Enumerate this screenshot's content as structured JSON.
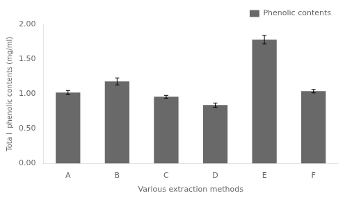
{
  "chart_data": {
    "type": "bar",
    "categories": [
      "A",
      "B",
      "C",
      "D",
      "E",
      "F"
    ],
    "series": [
      {
        "name": "Phenolic contents",
        "color": "#696969",
        "values": [
          1.02,
          1.18,
          0.96,
          0.84,
          1.78,
          1.04
        ],
        "errors": [
          0.03,
          0.05,
          0.02,
          0.03,
          0.06,
          0.025
        ]
      }
    ],
    "xlabel": "Various extraction methods",
    "ylabel": "Tota l  phenolic contents (mg/ml)",
    "ylim": [
      0,
      2.0
    ],
    "yticks": [
      {
        "value": 0,
        "label": "0.00"
      },
      {
        "value": 0.5,
        "label": "0.50"
      },
      {
        "value": 1.0,
        "label": "1.00"
      },
      {
        "value": 1.5,
        "label": "1.50"
      },
      {
        "value": 2.0,
        "label": "2.00"
      }
    ],
    "grid": false,
    "legend": "upper right"
  }
}
